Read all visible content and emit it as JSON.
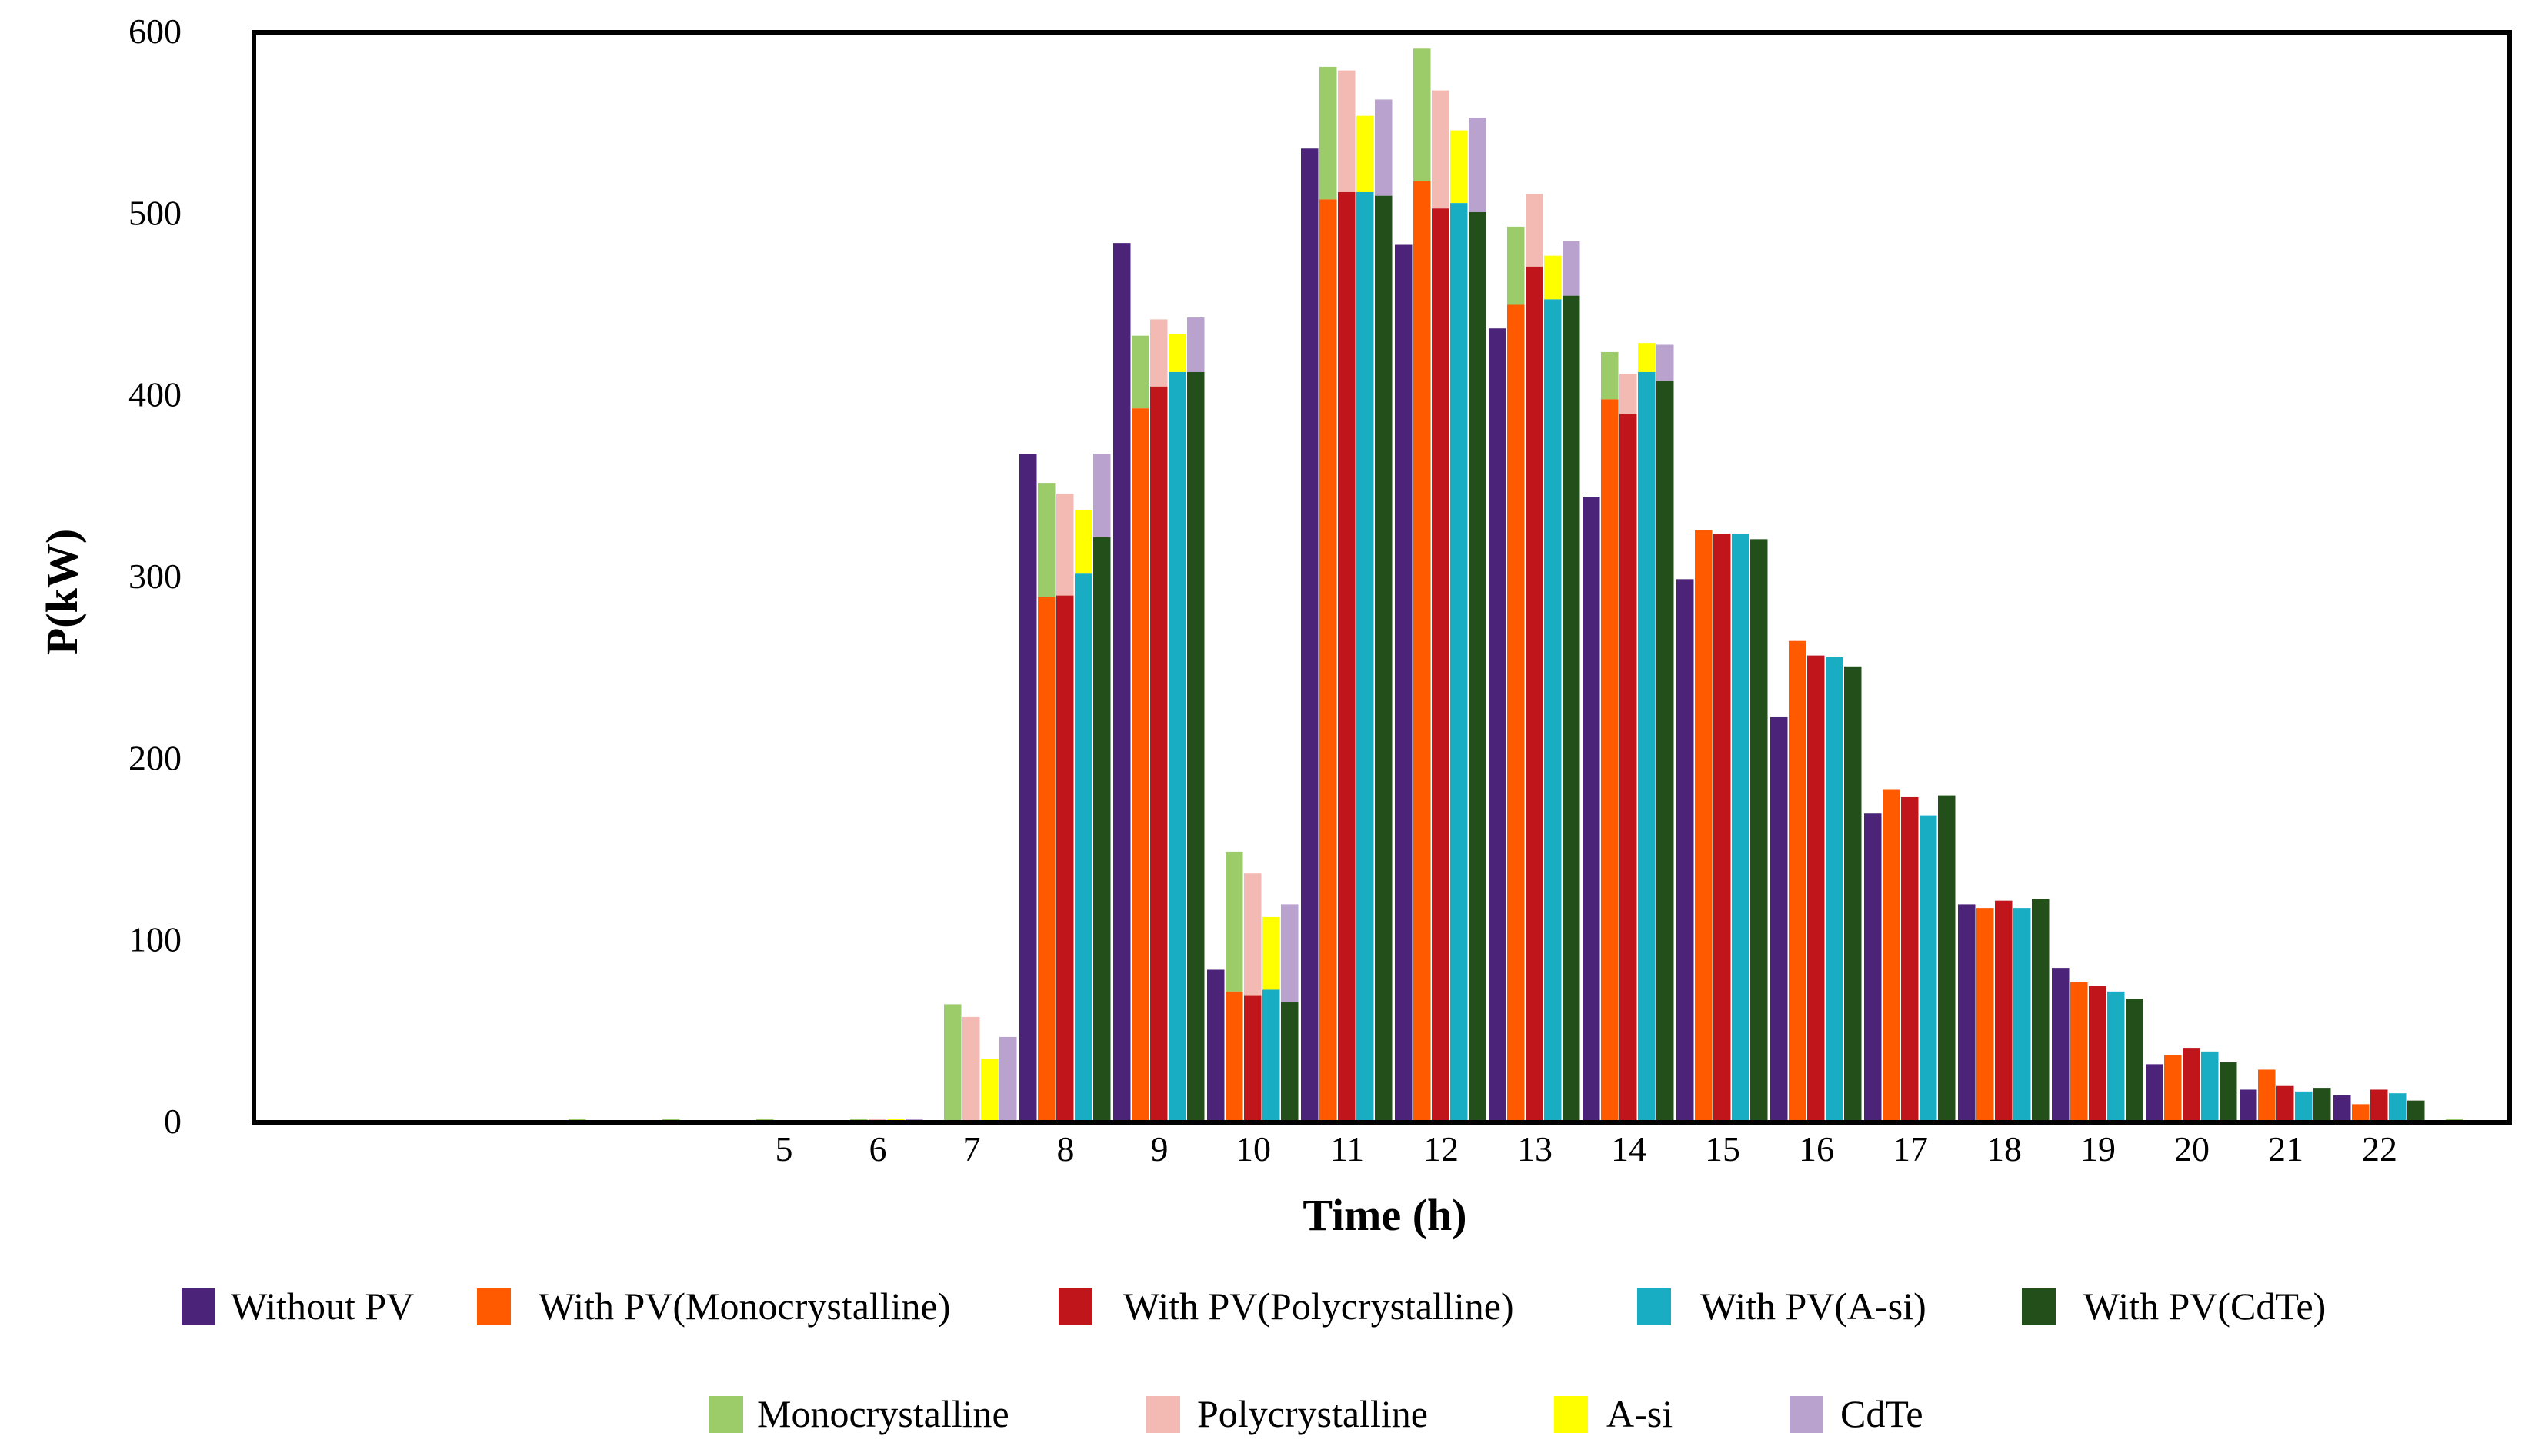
{
  "chart_data": {
    "type": "bar",
    "stacked": true,
    "xlabel": "Time (h)",
    "ylabel": "P(kW)",
    "ylim": [
      0,
      600
    ],
    "yticks": [
      0,
      100,
      200,
      300,
      400,
      500,
      600
    ],
    "grid": false,
    "legend_position": "bottom",
    "categories": [
      "",
      "",
      "",
      "",
      "5",
      "6",
      "7",
      "8",
      "9",
      "10",
      "11",
      "12",
      "13",
      "14",
      "15",
      "16",
      "17",
      "18",
      "19",
      "20",
      "21",
      "22",
      ""
    ],
    "bars": [
      {
        "name": "Without  PV",
        "color": "#4b2378",
        "values": [
          0,
          0,
          0,
          0,
          0,
          0,
          0,
          368,
          484,
          84,
          536,
          483,
          437,
          344,
          299,
          223,
          170,
          120,
          85,
          32,
          18,
          15,
          0
        ]
      },
      {
        "name": "With PV(Monocrystalline)",
        "color": "#ff5a00",
        "values": [
          0,
          0,
          0,
          0,
          0,
          0,
          0,
          289,
          393,
          72,
          508,
          518,
          450,
          398,
          326,
          265,
          183,
          118,
          77,
          37,
          29,
          10,
          0
        ]
      },
      {
        "name": "With PV(Polycrystalline)",
        "color": "#c0151a",
        "values": [
          0,
          0,
          0,
          0,
          0,
          0,
          0,
          290,
          405,
          70,
          512,
          503,
          471,
          390,
          324,
          257,
          179,
          122,
          75,
          41,
          20,
          18,
          0
        ]
      },
      {
        "name": "With PV(A-si)",
        "color": "#19adc4",
        "values": [
          0,
          0,
          0,
          0,
          0,
          0,
          0,
          302,
          413,
          73,
          512,
          506,
          453,
          413,
          324,
          256,
          169,
          118,
          72,
          39,
          17,
          16,
          0
        ]
      },
      {
        "name": "With PV(CdTe)",
        "color": "#23501a",
        "values": [
          0,
          0,
          0,
          0,
          0,
          0,
          0,
          322,
          413,
          66,
          510,
          501,
          455,
          408,
          321,
          251,
          180,
          123,
          68,
          33,
          19,
          12,
          0
        ]
      }
    ],
    "pv_generation": [
      {
        "name": "Monocrystalline",
        "color": "#9ccc6a",
        "stacks_on": 1,
        "values": [
          1,
          1,
          2,
          2,
          2,
          2,
          65,
          63,
          40,
          77,
          73,
          73,
          43,
          26,
          0,
          0,
          0,
          0,
          0,
          0,
          0,
          0,
          2
        ]
      },
      {
        "name": "Polycrystalline",
        "color": "#f3b9b3",
        "stacks_on": 2,
        "values": [
          0,
          0,
          0,
          0,
          1,
          2,
          58,
          56,
          37,
          67,
          67,
          65,
          40,
          22,
          0,
          0,
          0,
          0,
          0,
          0,
          0,
          0,
          0
        ]
      },
      {
        "name": "A-si",
        "color": "#ffff00",
        "stacks_on": 3,
        "values": [
          0,
          0,
          0,
          0,
          1,
          2,
          35,
          35,
          21,
          40,
          42,
          40,
          24,
          16,
          0,
          0,
          0,
          0,
          0,
          0,
          0,
          0,
          0
        ]
      },
      {
        "name": "CdTe",
        "color": "#b9a2ce",
        "stacks_on": 4,
        "values": [
          0,
          0,
          0,
          0,
          1,
          2,
          47,
          46,
          30,
          54,
          53,
          52,
          30,
          20,
          0,
          0,
          0,
          0,
          0,
          0,
          0,
          0,
          0
        ]
      }
    ]
  }
}
